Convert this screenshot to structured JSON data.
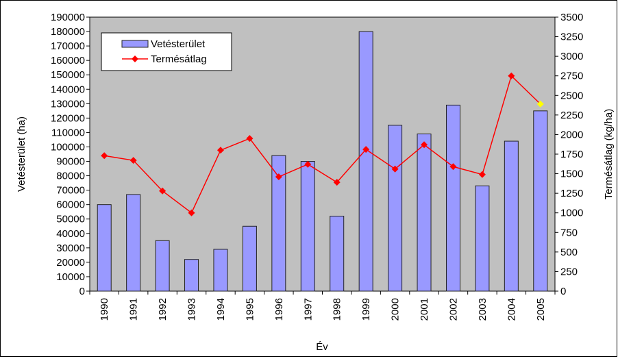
{
  "chart_data": {
    "type": "bar_line",
    "x_label": "Év",
    "y_label": "Vetésterület (ha)",
    "y2_label": "Termésátlag (kg/ha)",
    "categories": [
      "1990",
      "1991",
      "1992",
      "1993",
      "1994",
      "1995",
      "1996",
      "1997",
      "1998",
      "1999",
      "2000",
      "2001",
      "2002",
      "2003",
      "2004",
      "2005"
    ],
    "series": [
      {
        "name": "Vetésterület",
        "type": "bar",
        "color": "#9999ff",
        "values": [
          60000,
          67000,
          35000,
          22000,
          29000,
          45000,
          94000,
          90000,
          52000,
          180000,
          115000,
          109000,
          129000,
          73000,
          104000,
          125000
        ]
      },
      {
        "name": "Termésátlag",
        "type": "line",
        "axis": "y2",
        "color": "#ff0000",
        "highlight": {
          "index": 15,
          "color": "#ffff00"
        },
        "values": [
          1730,
          1670,
          1280,
          1000,
          1800,
          1950,
          1460,
          1620,
          1390,
          1810,
          1560,
          1870,
          1590,
          1490,
          2750,
          2390
        ]
      }
    ],
    "ylim": [
      0,
      190000
    ],
    "yticks": [
      0,
      10000,
      20000,
      30000,
      40000,
      50000,
      60000,
      70000,
      80000,
      90000,
      100000,
      110000,
      120000,
      130000,
      140000,
      150000,
      160000,
      170000,
      180000,
      190000
    ],
    "y2lim": [
      0,
      3500
    ],
    "y2ticks": [
      0,
      250,
      500,
      750,
      1000,
      1250,
      1500,
      1750,
      2000,
      2250,
      2500,
      2750,
      3000,
      3250,
      3500
    ],
    "plot_background": "#c0c0c0",
    "legend": "top-left"
  }
}
